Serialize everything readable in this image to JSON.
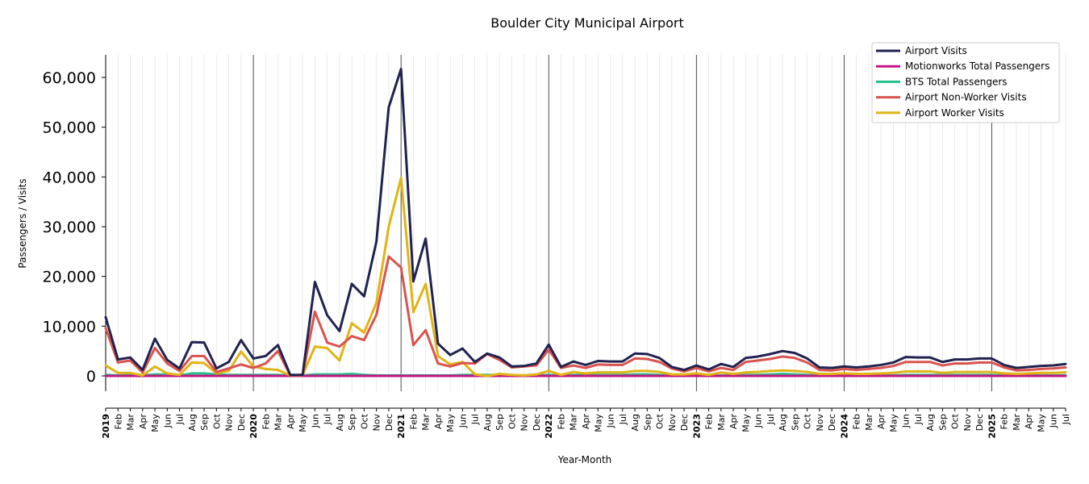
{
  "chart_data": {
    "type": "line",
    "title": "Boulder City Municipal Airport",
    "xlabel": "Year-Month",
    "ylabel": "Passengers / Visits",
    "ylim": [
      -3000,
      64000
    ],
    "yticks": [
      0,
      10000,
      20000,
      30000,
      40000,
      50000,
      60000
    ],
    "ytick_labels": [
      "0",
      "10,000",
      "20,000",
      "30,000",
      "40,000",
      "50,000",
      "60,000"
    ],
    "grid": true,
    "legend_position": "top-right",
    "x_tick_labels": [
      "2019",
      "Feb",
      "Mar",
      "Apr",
      "May",
      "Jun",
      "Jul",
      "Aug",
      "Sep",
      "Oct",
      "Nov",
      "Dec",
      "2020",
      "Feb",
      "Mar",
      "Apr",
      "May",
      "Jun",
      "Jul",
      "Aug",
      "Sep",
      "Oct",
      "Nov",
      "Dec",
      "2021",
      "Feb",
      "Mar",
      "Apr",
      "May",
      "Jun",
      "Jul",
      "Aug",
      "Sep",
      "Oct",
      "Nov",
      "Dec",
      "2022",
      "Feb",
      "Mar",
      "Apr",
      "May",
      "Jun",
      "Jul",
      "Aug",
      "Sep",
      "Oct",
      "Nov",
      "Dec",
      "2023",
      "Feb",
      "Mar",
      "Apr",
      "May",
      "Jun",
      "Jul",
      "Aug",
      "Sep",
      "Oct",
      "Nov",
      "Dec",
      "2024",
      "Feb",
      "Mar",
      "Apr",
      "May",
      "Jun",
      "Jul",
      "Aug",
      "Sep",
      "Oct",
      "Nov",
      "Dec",
      "2025",
      "Feb",
      "Mar",
      "Apr",
      "May",
      "Jun",
      "Jul"
    ],
    "series": [
      {
        "name": "Airport Visits",
        "color": "#21224f",
        "values": [
          11800,
          3300,
          3700,
          1200,
          7500,
          3200,
          1500,
          6800,
          6700,
          1500,
          2800,
          7200,
          3500,
          4000,
          6200,
          200,
          200,
          18900,
          12200,
          9000,
          18500,
          16000,
          27000,
          54000,
          61700,
          19000,
          27600,
          6500,
          4200,
          5500,
          2800,
          4500,
          3700,
          1900,
          2000,
          2500,
          6300,
          1800,
          2900,
          2200,
          3000,
          2900,
          2900,
          4500,
          4400,
          3600,
          1800,
          1200,
          2100,
          1300,
          2400,
          1800,
          3600,
          3900,
          4400,
          5000,
          4600,
          3500,
          1700,
          1600,
          1900,
          1700,
          1900,
          2200,
          2700,
          3800,
          3700,
          3700,
          2800,
          3300,
          3300,
          3500,
          3500,
          2200,
          1600,
          1800,
          2000,
          2100,
          2400
        ]
      },
      {
        "name": "Motionworks Total Passengers",
        "color": "#c71585",
        "values": [
          0,
          0,
          0,
          0,
          0,
          0,
          0,
          0,
          0,
          0,
          0,
          0,
          0,
          0,
          0,
          0,
          0,
          0,
          0,
          0,
          0,
          0,
          0,
          0,
          0,
          0,
          0,
          0,
          0,
          0,
          0,
          0,
          0,
          0,
          0,
          0,
          0,
          0,
          0,
          0,
          0,
          0,
          0,
          0,
          0,
          0,
          0,
          0,
          0,
          0,
          0,
          0,
          0,
          0,
          0,
          0,
          0,
          0,
          0,
          0,
          0,
          0,
          0,
          0,
          0,
          0,
          0,
          0,
          0,
          0,
          0,
          0,
          0,
          0,
          0,
          0,
          0,
          0,
          0
        ]
      },
      {
        "name": "BTS Total Passengers",
        "color": "#26c08a",
        "values": [
          200,
          100,
          200,
          100,
          300,
          300,
          100,
          500,
          500,
          300,
          200,
          200,
          200,
          200,
          200,
          100,
          100,
          300,
          300,
          300,
          400,
          200,
          100,
          100,
          100,
          100,
          100,
          100,
          100,
          200,
          200,
          200,
          200,
          100,
          100,
          100,
          200,
          100,
          200,
          200,
          200,
          200,
          200,
          300,
          300,
          200,
          100,
          100,
          100,
          100,
          100,
          100,
          200,
          200,
          300,
          400,
          300,
          200,
          100,
          100,
          100,
          100,
          100,
          100,
          100,
          200,
          200,
          200,
          200,
          200,
          200,
          200,
          200,
          100,
          100,
          100,
          100,
          100,
          100
        ]
      },
      {
        "name": "Airport Non-Worker Visits",
        "color": "#d9534f",
        "values": [
          9600,
          2700,
          3100,
          700,
          5600,
          2500,
          1000,
          4000,
          4000,
          800,
          1500,
          2300,
          1600,
          2500,
          5000,
          100,
          100,
          12900,
          6700,
          5900,
          8000,
          7200,
          12300,
          24000,
          21800,
          6200,
          9200,
          2500,
          1900,
          2600,
          2500,
          4400,
          3200,
          1700,
          1900,
          2100,
          5300,
          1600,
          2100,
          1600,
          2300,
          2200,
          2200,
          3500,
          3400,
          2800,
          1500,
          900,
          1600,
          900,
          1600,
          1200,
          2800,
          3100,
          3400,
          3900,
          3600,
          2700,
          1200,
          1100,
          1400,
          1200,
          1400,
          1600,
          2000,
          2800,
          2800,
          2800,
          2100,
          2500,
          2500,
          2700,
          2700,
          1700,
          1100,
          1200,
          1400,
          1500,
          1700
        ]
      },
      {
        "name": "Airport Worker Visits",
        "color": "#e0b416",
        "values": [
          2100,
          600,
          600,
          100,
          1900,
          500,
          200,
          2700,
          2600,
          500,
          1000,
          4900,
          1900,
          1400,
          1200,
          100,
          100,
          5900,
          5600,
          3100,
          10600,
          8700,
          14700,
          30000,
          39800,
          12800,
          18500,
          4000,
          2300,
          2800,
          300,
          0,
          400,
          200,
          100,
          300,
          1000,
          200,
          800,
          500,
          700,
          700,
          700,
          1000,
          1000,
          800,
          300,
          300,
          500,
          200,
          700,
          400,
          700,
          800,
          1000,
          1100,
          1000,
          800,
          400,
          400,
          500,
          400,
          400,
          500,
          600,
          900,
          900,
          900,
          600,
          800,
          800,
          800,
          800,
          500,
          400,
          500,
          600,
          600,
          700
        ]
      }
    ]
  }
}
